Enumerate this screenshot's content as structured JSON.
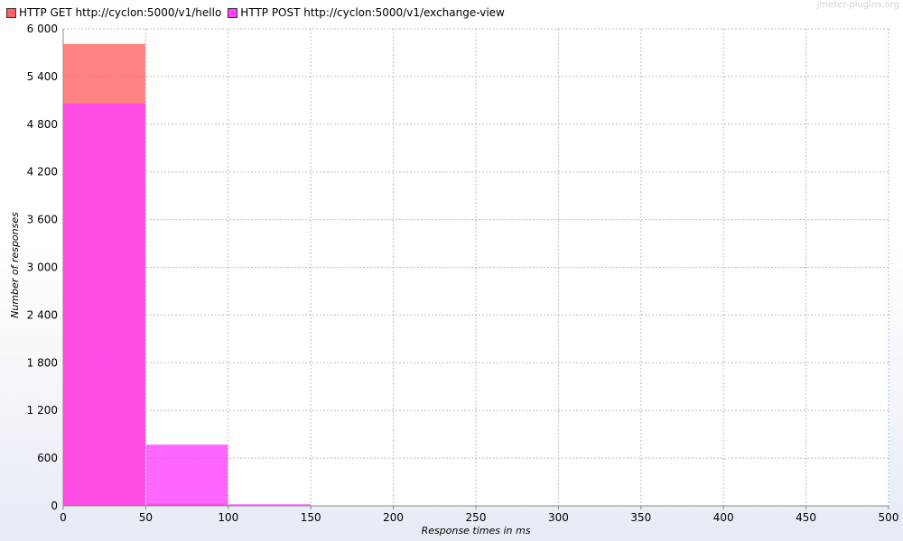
{
  "watermark": "jmeter-plugins.org",
  "chart_data": {
    "type": "bar",
    "xlabel": "Response times in ms",
    "ylabel": "Number of responses",
    "xlim": [
      0,
      500
    ],
    "ylim": [
      0,
      6000
    ],
    "x_ticks": [
      "0",
      "50",
      "100",
      "150",
      "200",
      "250",
      "300",
      "350",
      "400",
      "450",
      "500"
    ],
    "y_ticks": [
      "0",
      "600",
      "1 200",
      "1 800",
      "2 400",
      "3 000",
      "3 600",
      "4 200",
      "4 800",
      "5 400",
      "6 000"
    ],
    "bin_width": 50,
    "grid": true,
    "legend_position": "top-left",
    "series": [
      {
        "name": "HTTP GET http://cyclon:5000/v1/hello",
        "color": "#ff6464",
        "bins": [
          0,
          50,
          100
        ],
        "values": [
          5810,
          30,
          0
        ]
      },
      {
        "name": "HTTP POST http://cyclon:5000/v1/exchange-view",
        "color": "#ff40ff",
        "bins": [
          0,
          50,
          100
        ],
        "values": [
          5060,
          770,
          20
        ]
      }
    ]
  }
}
